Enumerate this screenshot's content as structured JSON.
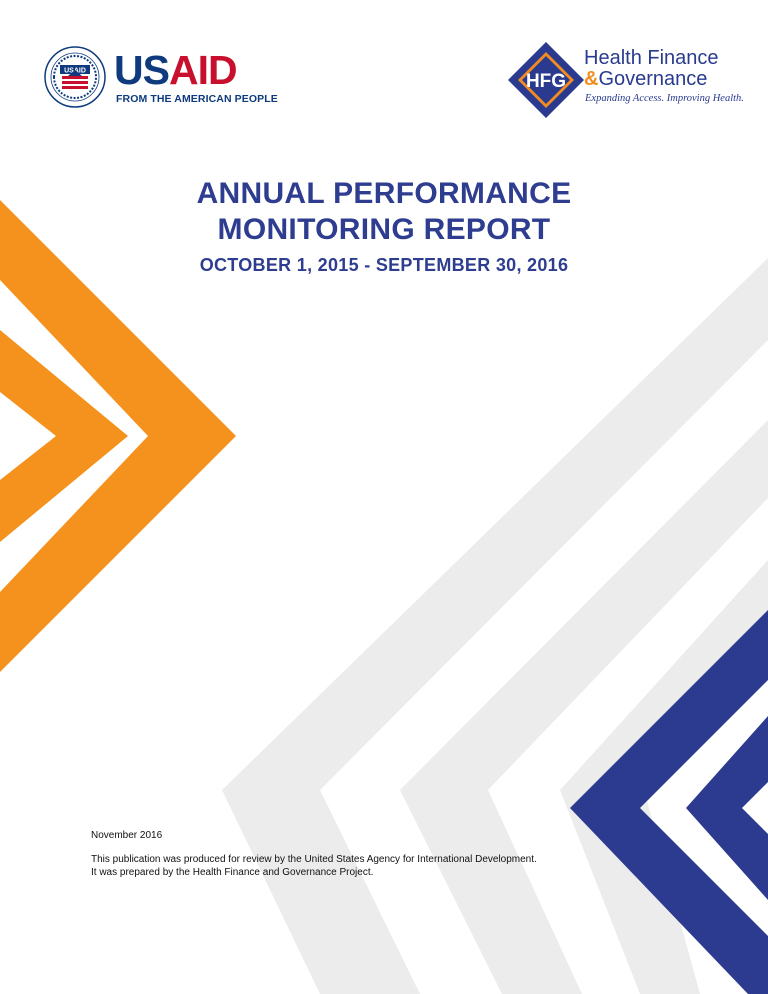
{
  "usaid_logo": {
    "word_us": "US",
    "word_aid": "AID",
    "tagline": "FROM THE AMERICAN PEOPLE",
    "seal_text": "USAID",
    "colors": {
      "blue": "#0f3a7d",
      "red": "#c8102e"
    }
  },
  "hfg_logo": {
    "mark_text": "HFG",
    "name_line1": "Health Finance",
    "name_amp": "&",
    "name_line2": "Governance",
    "tagline": "Expanding Access. Improving Health.",
    "colors": {
      "blue": "#2a3b8f",
      "orange": "#f28c1e"
    }
  },
  "report": {
    "title_line1": "ANNUAL PERFORMANCE",
    "title_line2": "MONITORING REPORT",
    "period": "OCTOBER 1, 2015 - SEPTEMBER 30, 2016"
  },
  "footer": {
    "date": "November 2016",
    "line1": "This publication was produced for review by the United States Agency for International Development.",
    "line2": "It was prepared by the Health Finance and Governance Project."
  },
  "decoration": {
    "orange": "#f5921e",
    "gray": "#ececec",
    "navy": "#2c3a8f"
  }
}
